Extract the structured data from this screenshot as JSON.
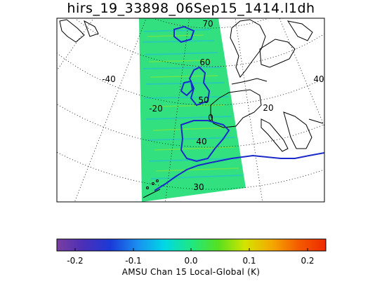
{
  "title": "hirs_19_33898_06Sep15_1414.l1dh",
  "map": {
    "projection": "polar stereographic",
    "grid": true,
    "lat_labels": [
      "70",
      "60",
      "50",
      "40",
      "30"
    ],
    "lon_labels": [
      "-40",
      "-20",
      "0",
      "20",
      "40"
    ]
  },
  "colorbar": {
    "label": "AMSU Chan 15 Local-Global (K)",
    "ticks": [
      "-0.2",
      "-0.1",
      "0.0",
      "0.1",
      "0.2"
    ],
    "range": [
      -0.23,
      0.23
    ],
    "colors": [
      "#7a3fa0",
      "#4a2fb8",
      "#1a3ad8",
      "#1a8ff0",
      "#00d8e6",
      "#1ee882",
      "#56e020",
      "#d4e400",
      "#f4a800",
      "#f45a00",
      "#ee2a00"
    ]
  },
  "colors": {
    "swath_fill": "#32e080",
    "swath_highlight": "#1fbcdc",
    "coast": "#000000",
    "frame": "#000000"
  }
}
